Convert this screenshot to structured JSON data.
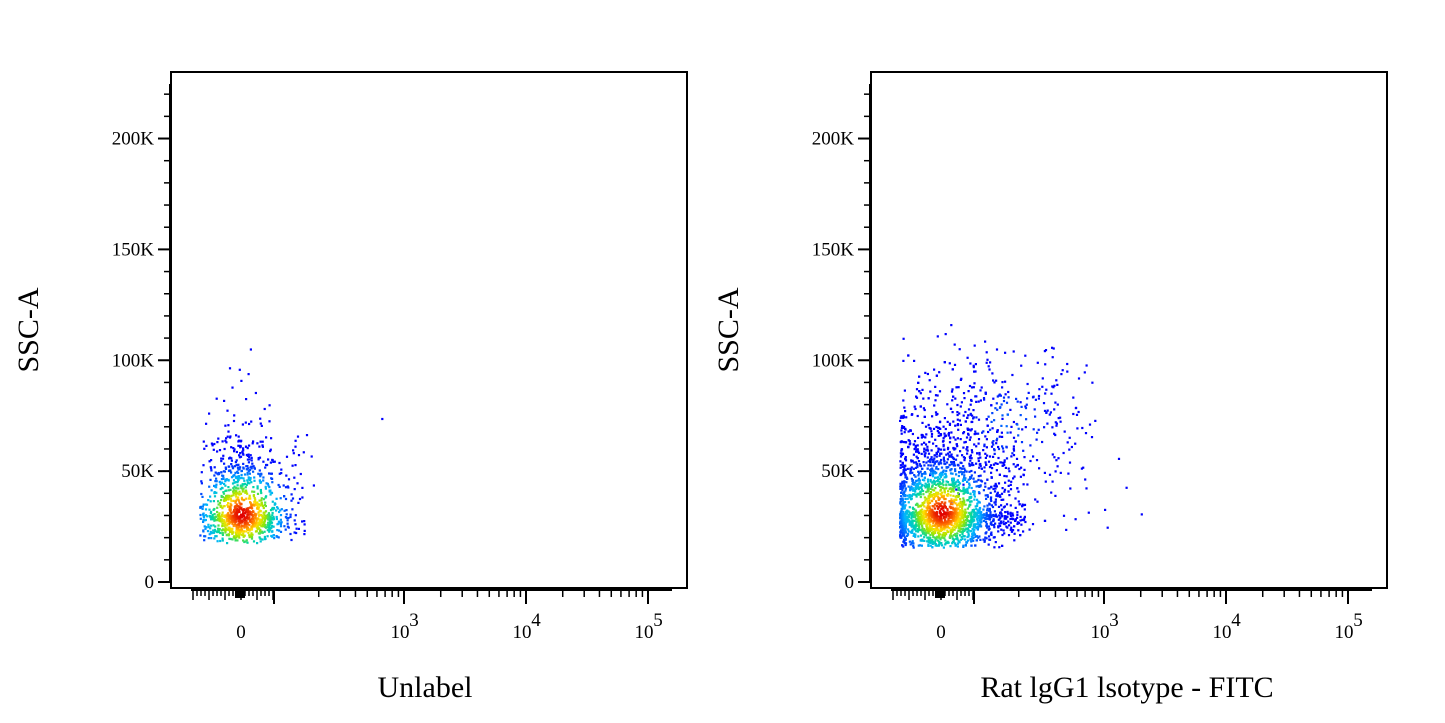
{
  "chart_data": [
    {
      "type": "scatter",
      "subtype": "flow-cytometry-density-dot-plot",
      "xlabel": "Unlabel",
      "ylabel": "SSC-A",
      "x_scale": "biexponential",
      "x_tick_labels": [
        "0",
        "10",
        "3",
        "10",
        "4",
        "10",
        "5"
      ],
      "x_ticks": [
        {
          "value": 0,
          "base": "0",
          "exp": ""
        },
        {
          "value": 1000,
          "base": "10",
          "exp": "3"
        },
        {
          "value": 10000,
          "base": "10",
          "exp": "4"
        },
        {
          "value": 100000,
          "base": "10",
          "exp": "5"
        }
      ],
      "y_scale": "linear",
      "ylim": [
        0,
        230000
      ],
      "y_ticks": [
        {
          "value": 0,
          "label": "0"
        },
        {
          "value": 50000,
          "label": "50K"
        },
        {
          "value": 100000,
          "label": "100K"
        },
        {
          "value": 150000,
          "label": "150K"
        },
        {
          "value": 200000,
          "label": "200K"
        }
      ],
      "colormap": [
        "#0000ff",
        "#00b4ff",
        "#00d8a0",
        "#9be600",
        "#ffe000",
        "#ff7000",
        "#e00000"
      ],
      "populations": [
        {
          "x_center": 0,
          "x_spread_neg": 45,
          "x_spread_pos": 60,
          "y_center": 31000,
          "y_spread_low": 6000,
          "y_spread_high": 18000,
          "y_min": 18000,
          "y_max": 112000,
          "count": 1200
        }
      ],
      "outliers": [
        {
          "x": 650,
          "y": 74000
        }
      ]
    },
    {
      "type": "scatter",
      "subtype": "flow-cytometry-density-dot-plot",
      "xlabel": "Rat lgG1 lsotype - FITC",
      "ylabel": "SSC-A",
      "x_scale": "biexponential",
      "x_tick_labels": [
        "0",
        "10",
        "3",
        "10",
        "4",
        "10",
        "5"
      ],
      "x_ticks": [
        {
          "value": 0,
          "base": "0",
          "exp": ""
        },
        {
          "value": 1000,
          "base": "10",
          "exp": "3"
        },
        {
          "value": 10000,
          "base": "10",
          "exp": "4"
        },
        {
          "value": 100000,
          "base": "10",
          "exp": "5"
        }
      ],
      "y_scale": "linear",
      "ylim": [
        0,
        230000
      ],
      "y_ticks": [
        {
          "value": 0,
          "label": "0"
        },
        {
          "value": 50000,
          "label": "50K"
        },
        {
          "value": 100000,
          "label": "100K"
        },
        {
          "value": 150000,
          "label": "150K"
        },
        {
          "value": 200000,
          "label": "200K"
        }
      ],
      "colormap": [
        "#0000ff",
        "#00b4ff",
        "#00d8a0",
        "#9be600",
        "#ffe000",
        "#ff7000",
        "#e00000"
      ],
      "populations": [
        {
          "x_center": 0,
          "x_spread_neg": 70,
          "x_spread_pos": 85,
          "y_center": 32000,
          "y_spread_low": 7000,
          "y_spread_high": 24000,
          "y_min": 16000,
          "y_max": 118000,
          "count": 2600
        },
        {
          "x_center": 160,
          "x_spread_neg": 80,
          "x_spread_pos": 260,
          "y_center": 72000,
          "y_spread_low": 20000,
          "y_spread_high": 22000,
          "y_min": 28000,
          "y_max": 110000,
          "count": 260
        }
      ],
      "outliers": [
        {
          "x": 480,
          "y": 24000
        },
        {
          "x": 1000,
          "y": 33000
        },
        {
          "x": 1050,
          "y": 25000
        },
        {
          "x": 1300,
          "y": 56000
        },
        {
          "x": 1500,
          "y": 43000
        },
        {
          "x": 2000,
          "y": 31000
        }
      ]
    }
  ]
}
